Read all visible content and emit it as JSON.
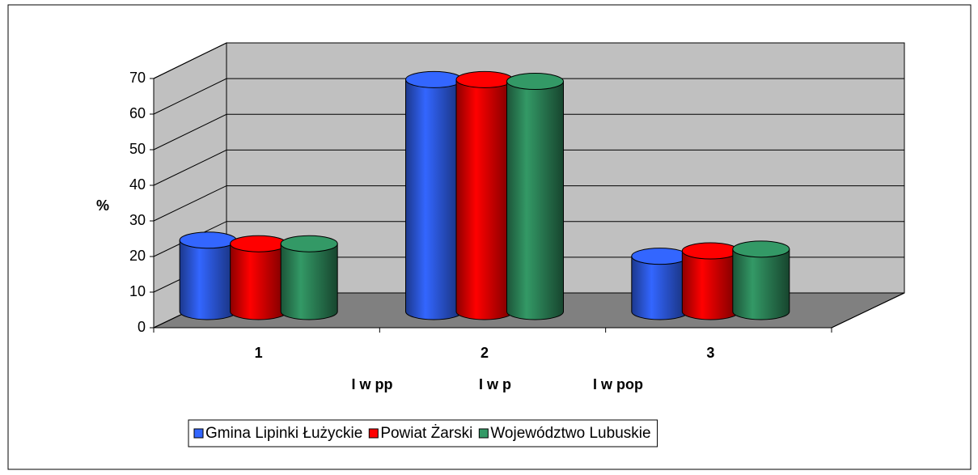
{
  "chart_data": {
    "type": "bar3d-cylinder",
    "y_label": "%",
    "categories": [
      "1",
      "2",
      "3"
    ],
    "category_labels": [
      "I w pp",
      "I w p",
      "I w pop"
    ],
    "series": [
      {
        "name": "Gmina Lipinki Łużyckie",
        "color": "#3366ff",
        "values": [
          20,
          65,
          15.5
        ]
      },
      {
        "name": "Powiat Żarski",
        "color": "#ff0000",
        "values": [
          19,
          65,
          17
        ]
      },
      {
        "name": "Województwo Lubuskie",
        "color": "#339966",
        "values": [
          19,
          64.5,
          17.5
        ]
      }
    ],
    "ylim": [
      0,
      70
    ],
    "yticks": [
      0,
      10,
      20,
      30,
      40,
      50,
      60,
      70
    ],
    "grid": true,
    "legend": "bottom"
  }
}
